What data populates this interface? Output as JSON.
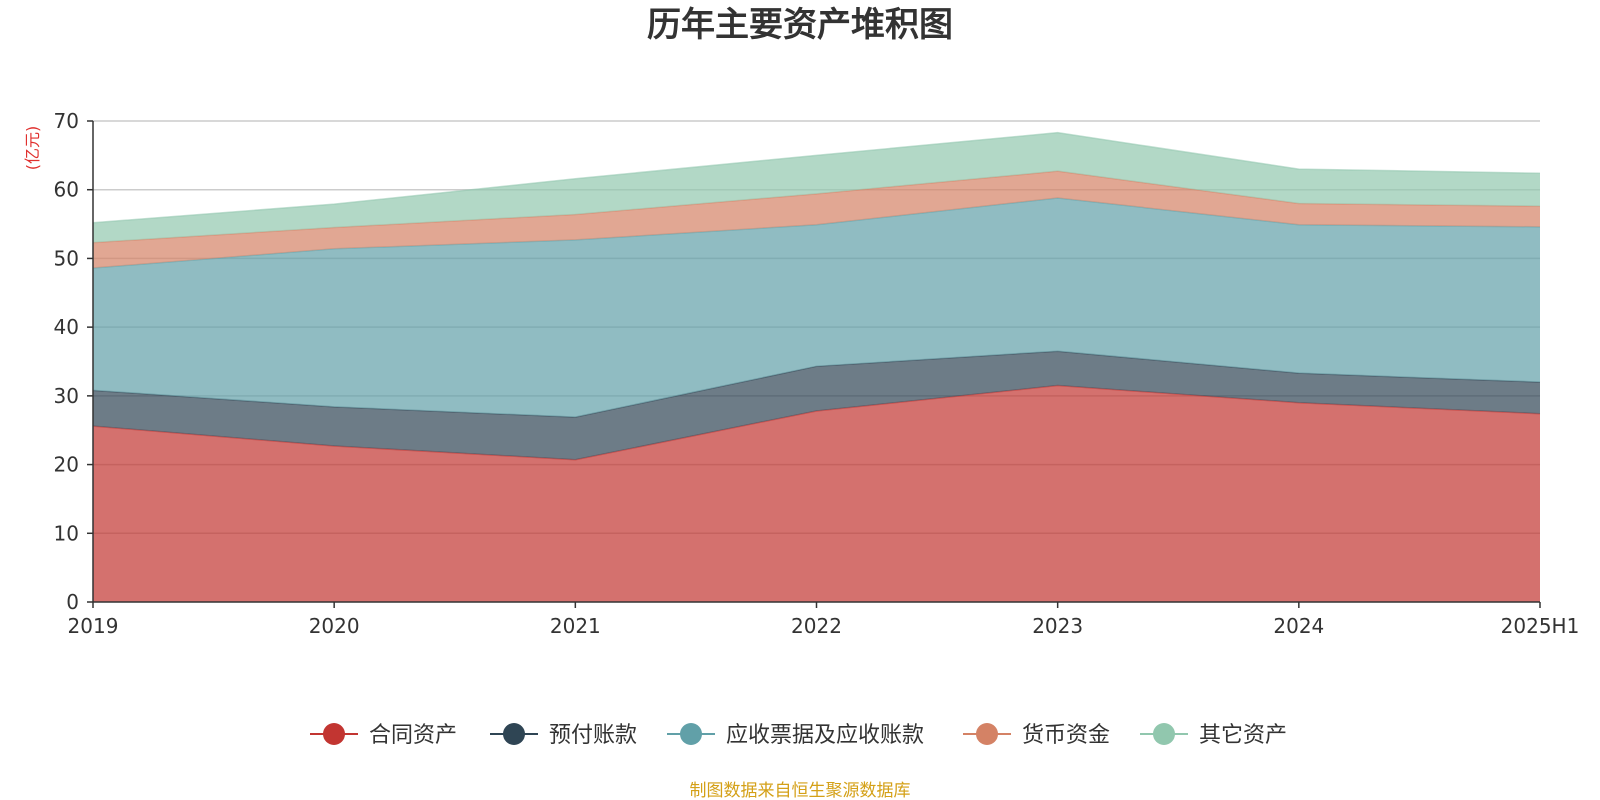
{
  "chart_data": {
    "type": "area",
    "stacked": true,
    "title": "历年主要资产堆积图",
    "ylabel": "(亿元)",
    "xlabel": "",
    "categories": [
      "2019",
      "2020",
      "2021",
      "2022",
      "2023",
      "2024",
      "2025H1"
    ],
    "ylim": [
      0,
      70
    ],
    "yticks": [
      0,
      10,
      20,
      30,
      40,
      50,
      60,
      70
    ],
    "grid": true,
    "legend_position": "bottom",
    "series": [
      {
        "name": "合同资产",
        "color": "#c23531",
        "values": [
          25.6,
          22.7,
          20.7,
          27.8,
          31.5,
          29.0,
          27.4
        ]
      },
      {
        "name": "预付账款",
        "color": "#2f4554",
        "values": [
          5.2,
          5.7,
          6.2,
          6.5,
          5.0,
          4.3,
          4.6
        ]
      },
      {
        "name": "应收票据及应收账款",
        "color": "#61a0a8",
        "values": [
          17.8,
          23.0,
          25.8,
          20.6,
          22.3,
          21.6,
          22.6
        ]
      },
      {
        "name": "货币资金",
        "color": "#d48265",
        "values": [
          3.7,
          3.1,
          3.7,
          4.5,
          3.9,
          3.1,
          3.0
        ]
      },
      {
        "name": "其它资产",
        "color": "#91c7ae",
        "values": [
          2.9,
          3.4,
          5.2,
          5.6,
          5.6,
          5.0,
          4.8
        ]
      }
    ]
  },
  "source_text": "制图数据来自恒生聚源数据库",
  "colors": {
    "title": "#333333",
    "ylabel": "#e0302e",
    "source": "#d4a017",
    "grid": "#cccccc",
    "axis": "#333333"
  }
}
